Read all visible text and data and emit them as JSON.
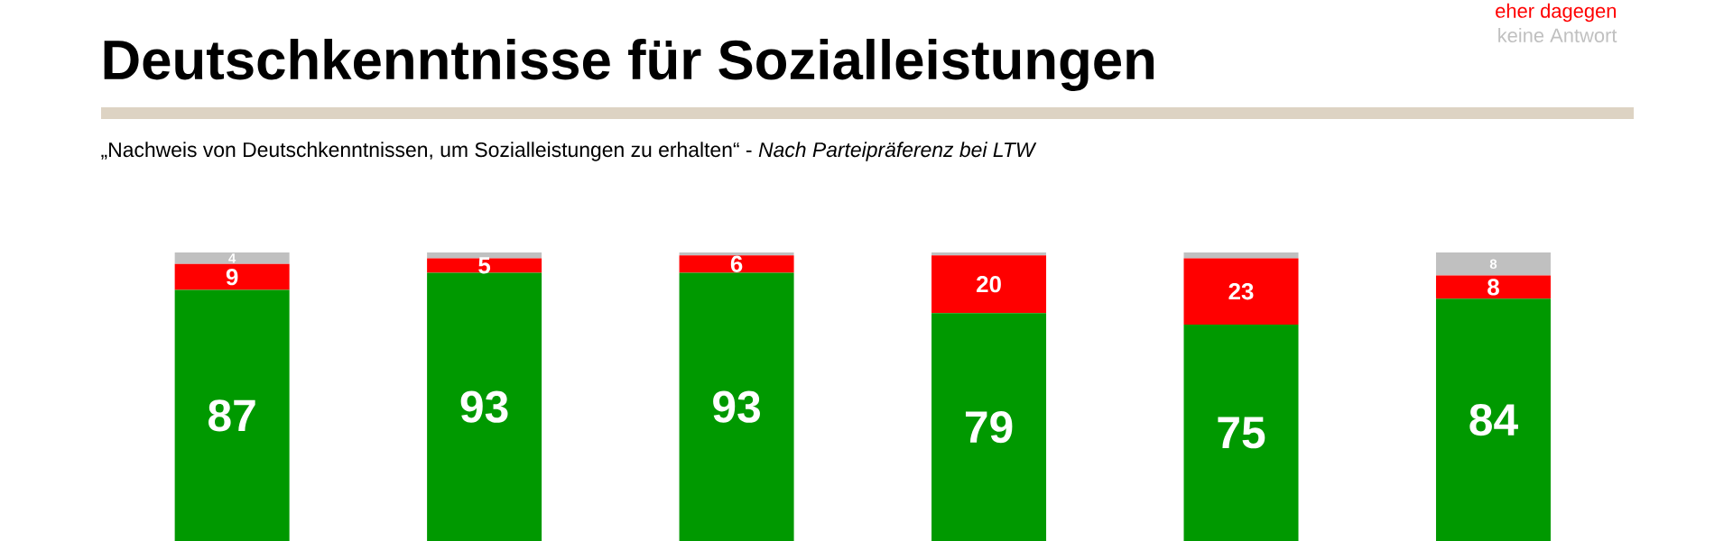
{
  "chart_data": {
    "type": "bar",
    "title": "Deutschkenntnisse für Sozialleistungen",
    "subtitle": "„Nachweis von Deutschkenntnissen, um Sozialleistungen zu erhalten“ - *Nach Parteipräferenz bei LTW*",
    "categories": [
      null,
      null,
      null,
      null,
      null,
      null
    ],
    "stacked": true,
    "legend": "top right",
    "series": [
      {
        "color": "#009900",
        "values": [
          87,
          93,
          93,
          79,
          75,
          84
        ],
        "value_labels": [
          "87",
          "93",
          "93",
          "79",
          "75",
          "84"
        ]
      },
      {
        "name": "eher dagegen",
        "color": "#ff0000",
        "values": [
          9,
          5,
          6,
          20,
          23,
          8
        ],
        "value_labels": [
          "9",
          "5",
          "6",
          "20",
          "23",
          "8"
        ]
      },
      {
        "name": "keine Antwort",
        "color": "#c0c0c0",
        "values": [
          4,
          2,
          1,
          1,
          2,
          8
        ],
        "value_labels": [
          "4",
          null,
          null,
          null,
          null,
          "8"
        ]
      }
    ]
  }
}
